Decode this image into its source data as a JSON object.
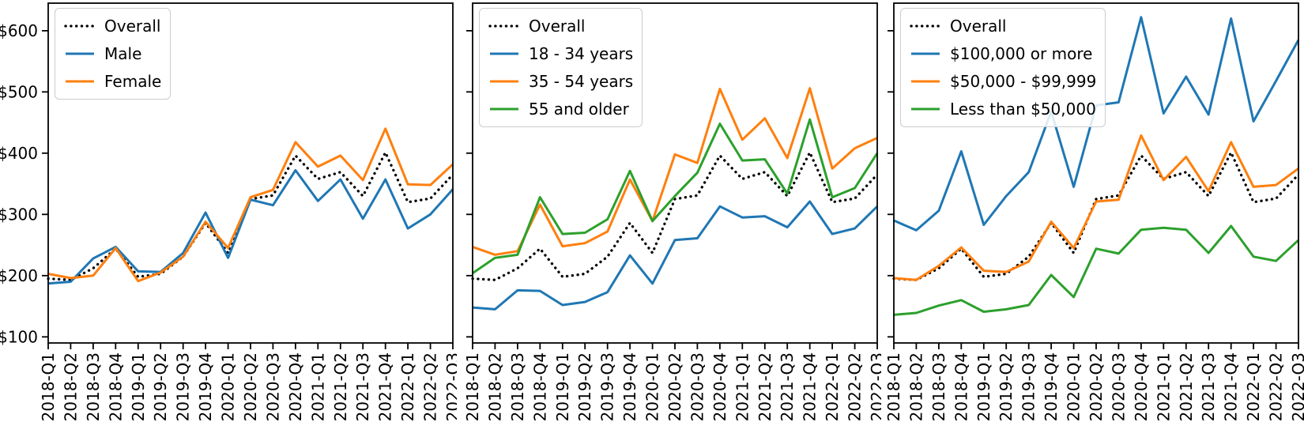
{
  "chart_data": [
    {
      "id": "by-gender",
      "type": "line",
      "title": "",
      "xlabel": "",
      "ylabel": "",
      "grid": false,
      "legend_position": "upper-left",
      "ylim": [
        90,
        645
      ],
      "y_ticks": [
        "$100",
        "$200",
        "$300",
        "$400",
        "$500",
        "$600"
      ],
      "y_tick_values": [
        100,
        200,
        300,
        400,
        500,
        600
      ],
      "x": [
        "2018-Q1",
        "2018-Q2",
        "2018-Q3",
        "2018-Q4",
        "2019-Q1",
        "2019-Q2",
        "2019-Q3",
        "2019-Q4",
        "2020-Q1",
        "2020-Q2",
        "2020-Q3",
        "2020-Q4",
        "2021-Q1",
        "2021-Q2",
        "2021-Q3",
        "2021-Q4",
        "2022-Q1",
        "2022-Q2",
        "2022-Q3"
      ],
      "series": [
        {
          "name": "Overall",
          "color": "#000000",
          "line_style": "dotted",
          "values": [
            195,
            193,
            212,
            244,
            198,
            203,
            231,
            286,
            237,
            325,
            331,
            396,
            358,
            369,
            330,
            401,
            320,
            326,
            365
          ]
        },
        {
          "name": "Male",
          "color": "#1f77b4",
          "line_style": "solid",
          "values": [
            187,
            190,
            228,
            247,
            207,
            206,
            237,
            303,
            229,
            324,
            315,
            372,
            322,
            357,
            293,
            357,
            277,
            300,
            341
          ]
        },
        {
          "name": "Female",
          "color": "#ff7f0e",
          "line_style": "solid",
          "values": [
            203,
            196,
            200,
            245,
            191,
            205,
            231,
            288,
            245,
            328,
            340,
            418,
            378,
            396,
            356,
            440,
            349,
            348,
            382
          ]
        }
      ]
    },
    {
      "id": "by-age",
      "type": "line",
      "title": "",
      "xlabel": "",
      "ylabel": "",
      "grid": false,
      "legend_position": "upper-left",
      "ylim": [
        90,
        645
      ],
      "y_ticks": [
        "$100",
        "$200",
        "$300",
        "$400",
        "$500",
        "$600"
      ],
      "y_tick_values": [
        100,
        200,
        300,
        400,
        500,
        600
      ],
      "x": [
        "2018-Q1",
        "2018-Q2",
        "2018-Q3",
        "2018-Q4",
        "2019-Q1",
        "2019-Q2",
        "2019-Q3",
        "2019-Q4",
        "2020-Q1",
        "2020-Q2",
        "2020-Q3",
        "2020-Q4",
        "2021-Q1",
        "2021-Q2",
        "2021-Q3",
        "2021-Q4",
        "2022-Q1",
        "2022-Q2",
        "2022-Q3"
      ],
      "series": [
        {
          "name": "Overall",
          "color": "#000000",
          "line_style": "dotted",
          "values": [
            195,
            193,
            212,
            244,
            198,
            203,
            231,
            286,
            237,
            325,
            331,
            396,
            358,
            369,
            330,
            401,
            320,
            326,
            365
          ]
        },
        {
          "name": "18 - 34 years",
          "color": "#1f77b4",
          "line_style": "solid",
          "values": [
            148,
            145,
            176,
            175,
            152,
            157,
            173,
            233,
            187,
            258,
            261,
            313,
            295,
            297,
            279,
            321,
            268,
            277,
            313
          ]
        },
        {
          "name": "35 - 54 years",
          "color": "#ff7f0e",
          "line_style": "solid",
          "values": [
            247,
            234,
            240,
            316,
            248,
            253,
            272,
            357,
            289,
            398,
            384,
            505,
            422,
            457,
            392,
            506,
            375,
            408,
            425
          ]
        },
        {
          "name": "55 and older",
          "color": "#2ca02c",
          "line_style": "solid",
          "values": [
            204,
            229,
            234,
            328,
            268,
            270,
            292,
            371,
            289,
            330,
            368,
            448,
            388,
            390,
            334,
            455,
            328,
            343,
            400
          ]
        }
      ]
    },
    {
      "id": "by-income",
      "type": "line",
      "title": "",
      "xlabel": "",
      "ylabel": "",
      "grid": false,
      "legend_position": "upper-left",
      "ylim": [
        90,
        645
      ],
      "y_ticks": [
        "$100",
        "$200",
        "$300",
        "$400",
        "$500",
        "$600"
      ],
      "y_tick_values": [
        100,
        200,
        300,
        400,
        500,
        600
      ],
      "x": [
        "2018-Q1",
        "2018-Q2",
        "2018-Q3",
        "2018-Q4",
        "2019-Q1",
        "2019-Q2",
        "2019-Q3",
        "2019-Q4",
        "2020-Q1",
        "2020-Q2",
        "2020-Q3",
        "2020-Q4",
        "2021-Q1",
        "2021-Q2",
        "2021-Q3",
        "2021-Q4",
        "2022-Q1",
        "2022-Q2",
        "2022-Q3"
      ],
      "series": [
        {
          "name": "Overall",
          "color": "#000000",
          "line_style": "dotted",
          "values": [
            195,
            193,
            212,
            244,
            198,
            203,
            231,
            286,
            237,
            325,
            331,
            396,
            358,
            369,
            330,
            401,
            320,
            326,
            365
          ]
        },
        {
          "name": "$100,000 or more",
          "color": "#1f77b4",
          "line_style": "solid",
          "values": [
            290,
            274,
            306,
            403,
            283,
            330,
            369,
            468,
            345,
            478,
            483,
            622,
            465,
            525,
            463,
            620,
            452,
            518,
            585
          ]
        },
        {
          "name": "$50,000 - $99,999",
          "color": "#ff7f0e",
          "line_style": "solid",
          "values": [
            196,
            193,
            216,
            246,
            208,
            206,
            223,
            288,
            245,
            321,
            324,
            429,
            356,
            394,
            338,
            418,
            345,
            348,
            375
          ]
        },
        {
          "name": "Less than $50,000",
          "color": "#2ca02c",
          "line_style": "solid",
          "values": [
            136,
            139,
            151,
            160,
            141,
            145,
            152,
            201,
            165,
            244,
            236,
            275,
            278,
            275,
            237,
            281,
            231,
            224,
            258
          ]
        }
      ]
    }
  ]
}
